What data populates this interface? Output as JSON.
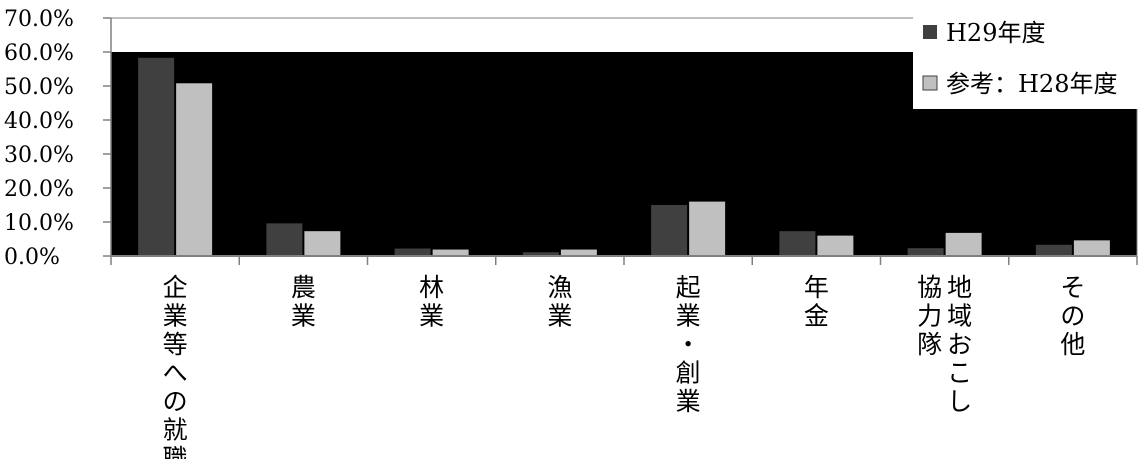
{
  "chart_data": {
    "type": "bar",
    "categories": [
      [
        "企業等への就職"
      ],
      [
        "農業"
      ],
      [
        "林業"
      ],
      [
        "漁業"
      ],
      [
        "起業・創業"
      ],
      [
        "年金"
      ],
      [
        "地域おこし",
        "協力隊"
      ],
      [
        "その他"
      ]
    ],
    "series": [
      {
        "name": "H29年度",
        "values": [
          58.3,
          9.6,
          2.2,
          1.1,
          15.0,
          7.3,
          2.3,
          3.3
        ],
        "color": "#404040"
      },
      {
        "name": "参考：H28年度",
        "values": [
          50.8,
          7.3,
          1.9,
          1.9,
          16.0,
          6.0,
          6.8,
          4.6
        ],
        "color": "#c0c0c0"
      }
    ],
    "y_ticks": [
      "0.0%",
      "10.0%",
      "20.0%",
      "30.0%",
      "40.0%",
      "50.0%",
      "60.0%",
      "70.0%"
    ],
    "ylim": [
      0,
      70
    ],
    "plot_background": "#000000",
    "legend_position": "top-right"
  }
}
